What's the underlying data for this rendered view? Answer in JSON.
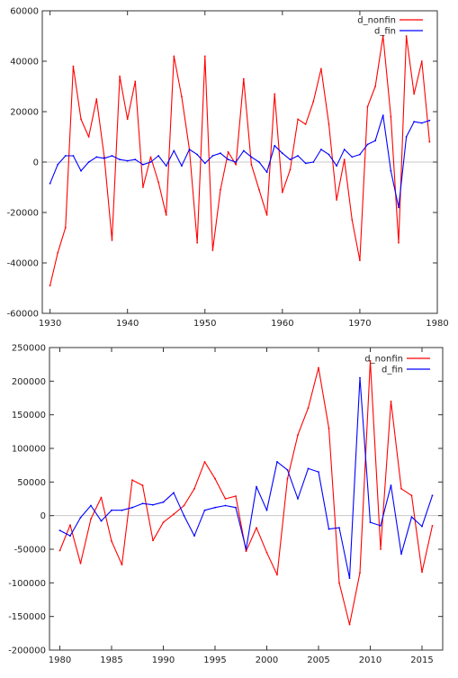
{
  "chart_data": [
    {
      "type": "line",
      "title": "",
      "xlabel": "",
      "ylabel": "",
      "xlim": [
        1929,
        1980
      ],
      "ylim": [
        -60000,
        60000
      ],
      "x_ticks": [
        1930,
        1940,
        1950,
        1960,
        1970,
        1980
      ],
      "y_ticks": [
        -60000,
        -40000,
        -20000,
        0,
        20000,
        40000,
        60000
      ],
      "x_tick_labels": [
        "1930",
        "1940",
        "1950",
        "1960",
        "1970",
        "1980"
      ],
      "y_tick_labels": [
        "-60000",
        "-40000",
        "-20000",
        "0",
        "20000",
        "40000",
        "60000"
      ],
      "zero_line": true,
      "legend_position": "top-right",
      "x": [
        1930,
        1931,
        1932,
        1933,
        1934,
        1935,
        1936,
        1937,
        1938,
        1939,
        1940,
        1941,
        1942,
        1943,
        1944,
        1945,
        1946,
        1947,
        1948,
        1949,
        1950,
        1951,
        1952,
        1953,
        1954,
        1955,
        1956,
        1957,
        1958,
        1959,
        1960,
        1961,
        1962,
        1963,
        1964,
        1965,
        1966,
        1967,
        1968,
        1969,
        1970,
        1971,
        1972,
        1973,
        1974,
        1975,
        1976,
        1977,
        1978,
        1979
      ],
      "series": [
        {
          "name": "d_nonfin",
          "color": "#ff0000",
          "values": [
            -49000,
            -36000,
            -26000,
            38000,
            17000,
            10000,
            25000,
            2000,
            -31000,
            34000,
            17000,
            32000,
            -10000,
            2000,
            -8000,
            -21000,
            42000,
            26000,
            5000,
            -32000,
            42000,
            -35000,
            -11000,
            4000,
            -1000,
            33000,
            -1000,
            -11000,
            -21000,
            27000,
            -12000,
            -3000,
            17000,
            15000,
            24000,
            37000,
            15000,
            -15000,
            1000,
            -23000,
            -39000,
            22000,
            30000,
            50000,
            18000,
            -32000,
            50000,
            27000,
            40000,
            8000
          ]
        },
        {
          "name": "d_fin",
          "color": "#0000ff",
          "values": [
            -8500,
            -1000,
            2500,
            2500,
            -3500,
            0,
            2000,
            1500,
            2500,
            1000,
            500,
            1000,
            -1000,
            0,
            2500,
            -1500,
            4500,
            -1500,
            5000,
            3000,
            -500,
            2500,
            3500,
            1000,
            0,
            4500,
            2000,
            0,
            -4000,
            6500,
            3500,
            1000,
            2500,
            -500,
            0,
            5000,
            3000,
            -1500,
            5000,
            2000,
            3000,
            7000,
            8500,
            18500,
            -3500,
            -18000,
            10000,
            16000,
            15500,
            16500
          ]
        }
      ]
    },
    {
      "type": "line",
      "title": "",
      "xlabel": "",
      "ylabel": "",
      "xlim": [
        1979,
        2017
      ],
      "ylim": [
        -200000,
        250000
      ],
      "x_ticks": [
        1980,
        1985,
        1990,
        1995,
        2000,
        2005,
        2010,
        2015
      ],
      "y_ticks": [
        -200000,
        -150000,
        -100000,
        -50000,
        0,
        50000,
        100000,
        150000,
        200000,
        250000
      ],
      "x_tick_labels": [
        "1980",
        "1985",
        "1990",
        "1995",
        "2000",
        "2005",
        "2010",
        "2015"
      ],
      "y_tick_labels": [
        "-200000",
        "-150000",
        "-100000",
        "-50000",
        "0",
        "50000",
        "100000",
        "150000",
        "200000",
        "250000"
      ],
      "zero_line": true,
      "legend_position": "top-right",
      "x": [
        1980,
        1981,
        1982,
        1983,
        1984,
        1985,
        1986,
        1987,
        1988,
        1989,
        1990,
        1991,
        1992,
        1993,
        1994,
        1995,
        1996,
        1997,
        1998,
        1999,
        2000,
        2001,
        2002,
        2003,
        2004,
        2005,
        2006,
        2007,
        2008,
        2009,
        2010,
        2011,
        2012,
        2013,
        2014,
        2015,
        2016
      ],
      "series": [
        {
          "name": "d_nonfin",
          "color": "#ff0000",
          "values": [
            -52000,
            -14000,
            -71000,
            -5000,
            27000,
            -38000,
            -73000,
            53000,
            45000,
            -37000,
            -10000,
            2000,
            15000,
            40000,
            80000,
            55000,
            25000,
            29000,
            -53000,
            -18000,
            -55000,
            -88000,
            55000,
            120000,
            160000,
            220000,
            130000,
            -100000,
            -162000,
            -85000,
            230000,
            -50000,
            170000,
            40000,
            30000,
            -84000,
            -15000
          ]
        },
        {
          "name": "d_fin",
          "color": "#0000ff",
          "values": [
            -22000,
            -30000,
            -3000,
            15000,
            -8000,
            8000,
            8000,
            12000,
            18000,
            16000,
            20000,
            34000,
            0,
            -30000,
            8000,
            12000,
            15000,
            12000,
            -50000,
            43000,
            8000,
            80000,
            68000,
            25000,
            70000,
            65000,
            -20000,
            -18000,
            -93000,
            205000,
            -10000,
            -15000,
            45000,
            -57000,
            -2000,
            -16000,
            30000
          ]
        }
      ]
    }
  ]
}
